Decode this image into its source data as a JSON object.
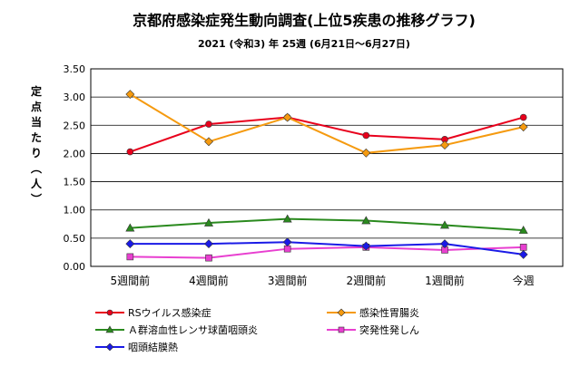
{
  "chart_data": {
    "type": "line",
    "title": "京都府感染症発生動向調査(上位5疾患の推移グラフ)",
    "subtitle": "2021 (令和3) 年 25週 (6月21日～6月27日)",
    "ylabel": "定点当たり（人）",
    "categories": [
      "5週間前",
      "4週間前",
      "3週間前",
      "2週間前",
      "1週間前",
      "今週"
    ],
    "ylim": [
      0,
      3.5
    ],
    "yticks": [
      "0.00",
      "0.50",
      "1.00",
      "1.50",
      "2.00",
      "2.50",
      "3.00",
      "3.50"
    ],
    "grid": true,
    "legend_position": "bottom",
    "series": [
      {
        "name": "RSウイルス感染症",
        "color": "#e8001c",
        "marker": "circle",
        "values": [
          2.03,
          2.52,
          2.64,
          2.32,
          2.25,
          2.64
        ]
      },
      {
        "name": "感染性胃腸炎",
        "color": "#f59a0f",
        "marker": "diamond",
        "values": [
          3.05,
          2.21,
          2.64,
          2.01,
          2.15,
          2.47
        ]
      },
      {
        "name": "Ａ群溶血性レンサ球菌咽頭炎",
        "color": "#2a8a1e",
        "marker": "triangle",
        "values": [
          0.68,
          0.77,
          0.84,
          0.81,
          0.73,
          0.64
        ]
      },
      {
        "name": "突発性発しん",
        "color": "#e83fd0",
        "marker": "square",
        "values": [
          0.17,
          0.15,
          0.31,
          0.34,
          0.29,
          0.34
        ]
      },
      {
        "name": "咽頭結膜熱",
        "color": "#1a1ae6",
        "marker": "diamond",
        "values": [
          0.4,
          0.4,
          0.43,
          0.36,
          0.4,
          0.21
        ]
      }
    ]
  }
}
